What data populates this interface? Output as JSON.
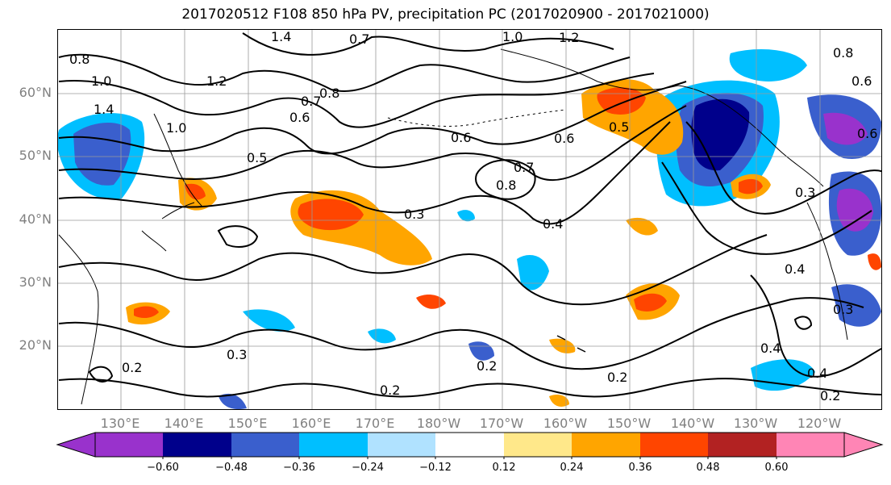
{
  "title": "2017020512 F108 850 hPa PV, precipitation PC (2017020900 - 2017021000)",
  "lat_labels": [
    "60°N",
    "50°N",
    "40°N",
    "30°N",
    "20°N"
  ],
  "lon_labels": [
    "130°E",
    "140°E",
    "150°E",
    "160°E",
    "170°E",
    "180°W",
    "170°W",
    "160°W",
    "150°W",
    "140°W",
    "130°W",
    "120°W"
  ],
  "colorbar": {
    "tick_labels": [
      "−0.60",
      "−0.48",
      "−0.36",
      "−0.24",
      "−0.12",
      "0.12",
      "0.24",
      "0.36",
      "0.48",
      "0.60"
    ],
    "colors": [
      "#9932cc",
      "#00008b",
      "#3a5fcd",
      "#00bfff",
      "#b0e2ff",
      "#ffffff",
      "#ffe88a",
      "#ffa500",
      "#ff4500",
      "#b22222",
      "#ff85b5"
    ]
  },
  "contour_labels": [
    "0.7",
    "1.0",
    "1.2",
    "1.4",
    "0.8",
    "1.0",
    "1.4",
    "1.0",
    "1.2",
    "0.5",
    "0.6",
    "0.7",
    "0.8",
    "0.7",
    "0.8",
    "0.6",
    "0.6",
    "0.5",
    "0.3",
    "0.4",
    "0.3",
    "0.4",
    "0.3",
    "0.2",
    "0.3",
    "0.2",
    "0.2",
    "0.2",
    "0.4",
    "0.4",
    "0.2",
    "0.8",
    "0.6",
    "0.6"
  ]
}
